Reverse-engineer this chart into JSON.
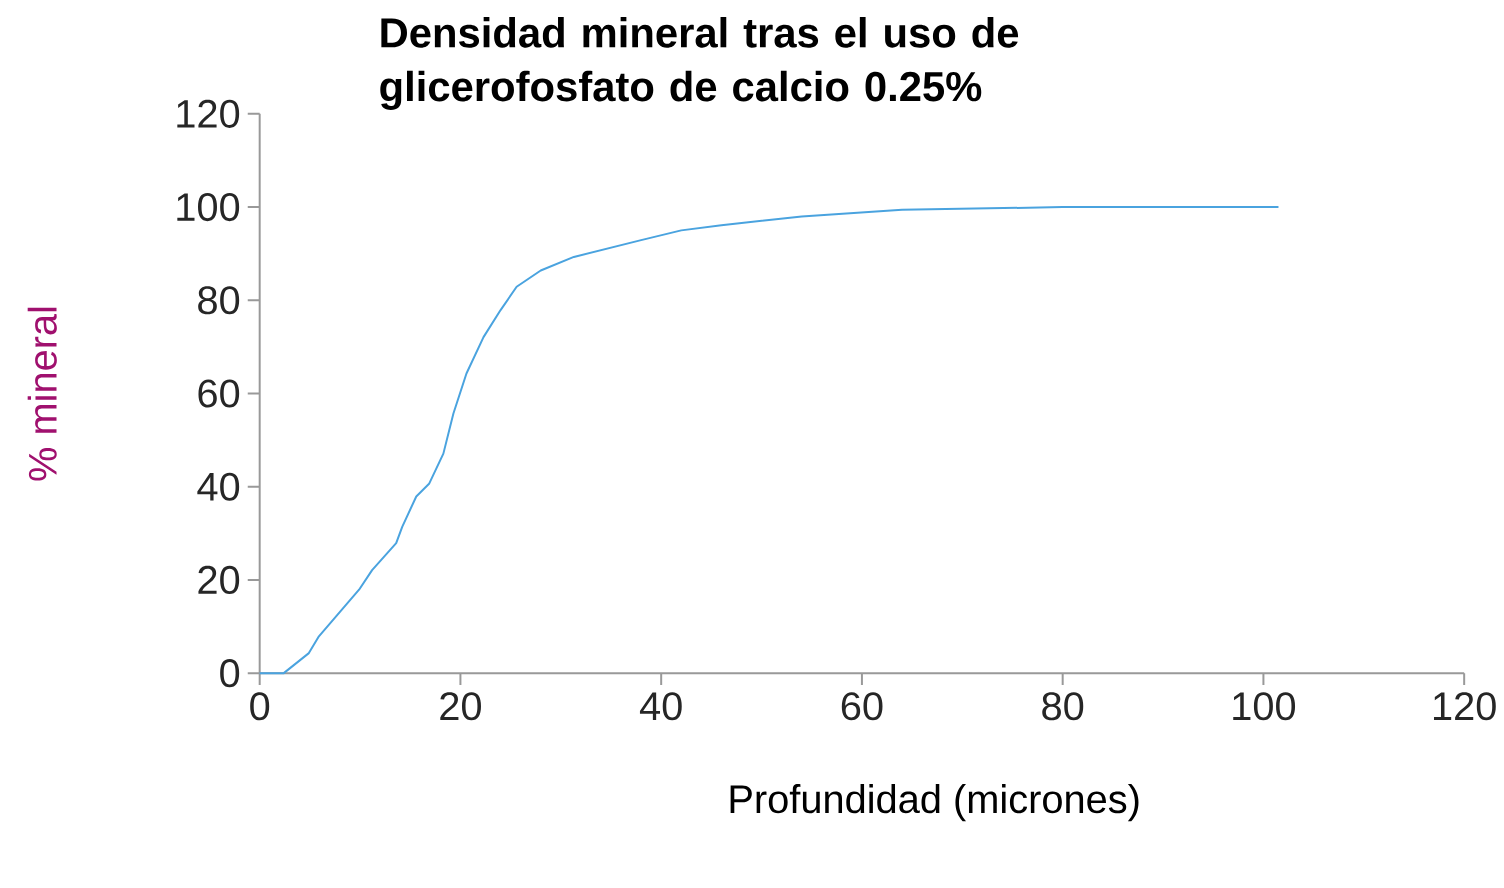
{
  "chart_data": {
    "type": "line",
    "title": "Densidad mineral tras el uso de glicerofosfato de calcio 0.25%",
    "xlabel": "Profundidad (micrones)",
    "ylabel": "% mineral",
    "x": [
      0,
      2.4,
      4.9,
      5.9,
      9.9,
      11.2,
      13.6,
      14.2,
      15.6,
      16.9,
      18.3,
      19.3,
      20.6,
      22.3,
      24.0,
      25.6,
      28.0,
      31.3,
      38.0,
      42.0,
      46.0,
      54,
      64,
      80,
      101.5
    ],
    "series": [
      {
        "color": "#4aa3df",
        "values": [
          0,
          0,
          4.3,
          7.9,
          17.9,
          22.1,
          27.9,
          31.4,
          37.9,
          40.7,
          47.1,
          55.7,
          64.3,
          72.1,
          77.9,
          82.9,
          86.4,
          89.3,
          92.9,
          95.0,
          96.1,
          98,
          99.4,
          100,
          100
        ]
      }
    ],
    "xlim": [
      0,
      120
    ],
    "ylim": [
      0,
      120
    ],
    "xticks": [
      0,
      20,
      40,
      60,
      80,
      100,
      120
    ],
    "yticks": [
      0,
      20,
      40,
      60,
      80,
      100,
      120
    ],
    "grid": false,
    "marker": "none",
    "line_style": "solid"
  }
}
